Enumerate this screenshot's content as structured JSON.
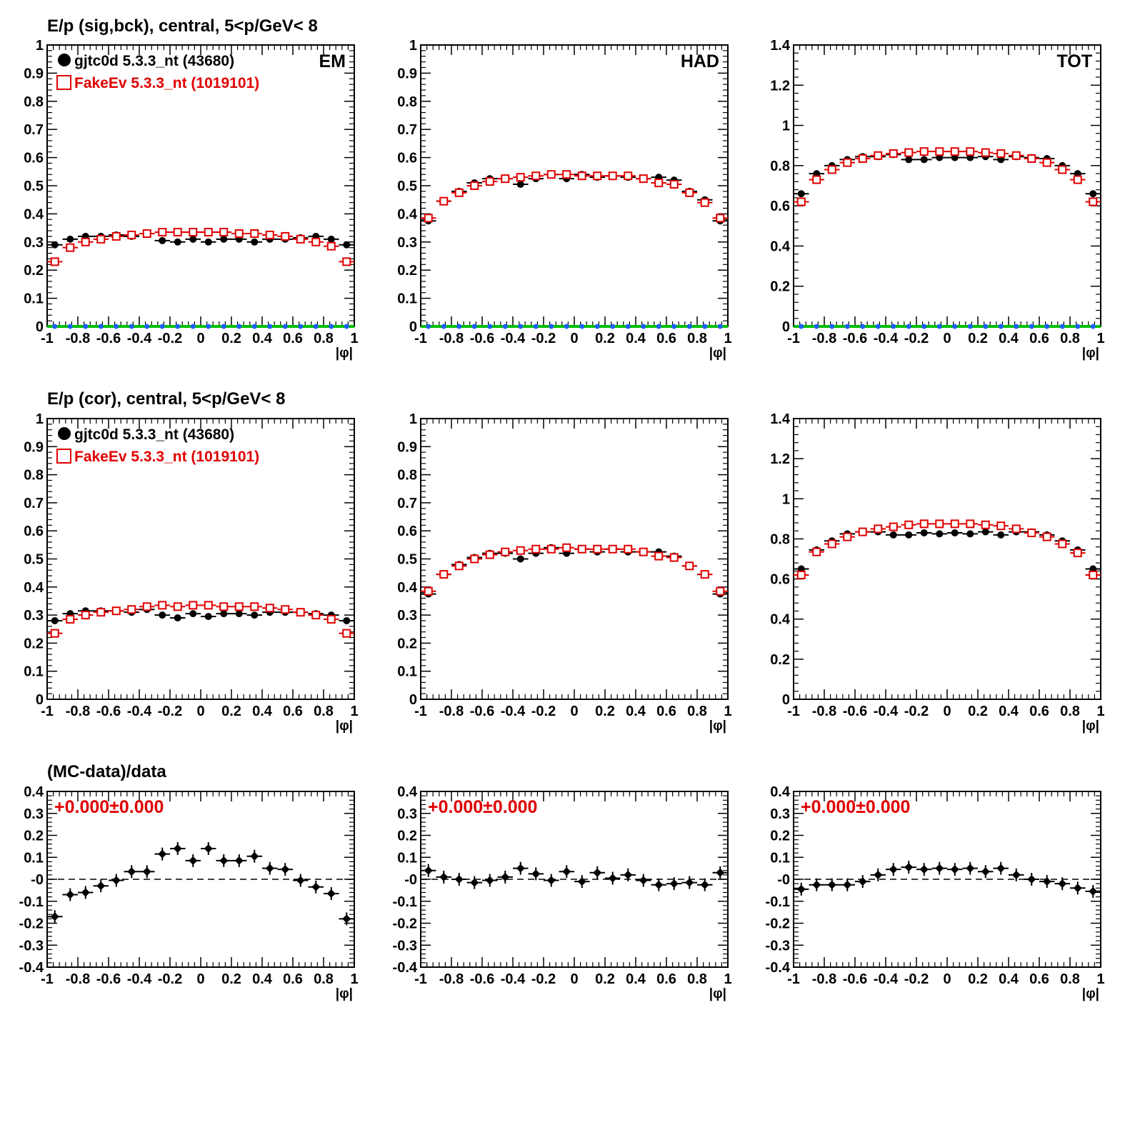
{
  "row_titles": [
    "E/p (sig,bck), central,  5<p/GeV< 8",
    "E/p (cor), central,  5<p/GeV< 8",
    "(MC-data)/data"
  ],
  "panel_labels": [
    "EM",
    "HAD",
    "TOT"
  ],
  "xlabel": "|φ|",
  "legend": {
    "data_label": "gjtc0d 5.3.3_nt (43680)",
    "mc_label": "FakeEv 5.3.3_nt (1019101)"
  },
  "ratio_annotation": "+0.000±0.000",
  "colors": {
    "data": "#000000",
    "mc": "#e00000",
    "zero_band": "#00c000",
    "zero_marker": "#2060ff",
    "annotation": "#e00000"
  },
  "chart_data": [
    {
      "id": "r0c0",
      "type": "scatter",
      "title": "E/p (sig,bck), central,  5<p/GeV< 8",
      "label": "EM",
      "xlabel": "|φ|",
      "xlim": [
        -1,
        1
      ],
      "ylim": [
        0,
        1
      ],
      "yticks": [
        0,
        0.1,
        0.2,
        0.3,
        0.4,
        0.5,
        0.6,
        0.7,
        0.8,
        0.9,
        1
      ],
      "xticks": [
        -1,
        -0.8,
        -0.6,
        -0.4,
        -0.2,
        0,
        0.2,
        0.4,
        0.6,
        0.8,
        1
      ],
      "x": [
        -0.95,
        -0.85,
        -0.75,
        -0.65,
        -0.55,
        -0.45,
        -0.35,
        -0.25,
        -0.15,
        -0.05,
        0.05,
        0.15,
        0.25,
        0.35,
        0.45,
        0.55,
        0.65,
        0.75,
        0.85,
        0.95
      ],
      "series": [
        {
          "name": "gjtc0d 5.3.3_nt (43680)",
          "marker": "filled-circle",
          "values": [
            0.29,
            0.31,
            0.32,
            0.32,
            0.325,
            0.32,
            0.33,
            0.305,
            0.3,
            0.31,
            0.3,
            0.31,
            0.31,
            0.3,
            0.31,
            0.31,
            0.315,
            0.32,
            0.31,
            0.29
          ]
        },
        {
          "name": "FakeEv 5.3.3_nt (1019101)",
          "marker": "open-square",
          "values": [
            0.23,
            0.28,
            0.3,
            0.31,
            0.32,
            0.325,
            0.33,
            0.335,
            0.335,
            0.335,
            0.335,
            0.335,
            0.33,
            0.33,
            0.325,
            0.32,
            0.31,
            0.3,
            0.285,
            0.23
          ]
        },
        {
          "name": "",
          "marker": "zero-band",
          "values": [
            0,
            0,
            0,
            0,
            0,
            0,
            0,
            0,
            0,
            0,
            0,
            0,
            0,
            0,
            0,
            0,
            0,
            0,
            0,
            0
          ]
        }
      ]
    },
    {
      "id": "r0c1",
      "type": "scatter",
      "label": "HAD",
      "xlabel": "|φ|",
      "xlim": [
        -1,
        1
      ],
      "ylim": [
        0,
        1
      ],
      "yticks": [
        0,
        0.1,
        0.2,
        0.3,
        0.4,
        0.5,
        0.6,
        0.7,
        0.8,
        0.9,
        1
      ],
      "xticks": [
        -1,
        -0.8,
        -0.6,
        -0.4,
        -0.2,
        0,
        0.2,
        0.4,
        0.6,
        0.8,
        1
      ],
      "x": [
        -0.95,
        -0.85,
        -0.75,
        -0.65,
        -0.55,
        -0.45,
        -0.35,
        -0.25,
        -0.15,
        -0.05,
        0.05,
        0.15,
        0.25,
        0.35,
        0.45,
        0.55,
        0.65,
        0.75,
        0.85,
        0.95
      ],
      "series": [
        {
          "name": "gjtc0d 5.3.3_nt (43680)",
          "marker": "filled-circle",
          "values": [
            0.375,
            0.445,
            0.48,
            0.51,
            0.525,
            0.525,
            0.505,
            0.525,
            0.54,
            0.525,
            0.54,
            0.53,
            0.535,
            0.53,
            0.525,
            0.53,
            0.52,
            0.48,
            0.45,
            0.375
          ]
        },
        {
          "name": "FakeEv 5.3.3_nt (1019101)",
          "marker": "open-square",
          "values": [
            0.385,
            0.445,
            0.475,
            0.5,
            0.515,
            0.525,
            0.53,
            0.535,
            0.54,
            0.54,
            0.535,
            0.535,
            0.535,
            0.535,
            0.525,
            0.51,
            0.505,
            0.475,
            0.44,
            0.385
          ]
        },
        {
          "name": "",
          "marker": "zero-band",
          "values": [
            0,
            0,
            0,
            0,
            0,
            0,
            0,
            0,
            0,
            0,
            0,
            0,
            0,
            0,
            0,
            0,
            0,
            0,
            0,
            0
          ]
        }
      ]
    },
    {
      "id": "r0c2",
      "type": "scatter",
      "label": "TOT",
      "xlabel": "|φ|",
      "xlim": [
        -1,
        1
      ],
      "ylim": [
        0,
        1.4
      ],
      "yticks": [
        0,
        0.2,
        0.4,
        0.6,
        0.8,
        1,
        1.2,
        1.4
      ],
      "xticks": [
        -1,
        -0.8,
        -0.6,
        -0.4,
        -0.2,
        0,
        0.2,
        0.4,
        0.6,
        0.8,
        1
      ],
      "x": [
        -0.95,
        -0.85,
        -0.75,
        -0.65,
        -0.55,
        -0.45,
        -0.35,
        -0.25,
        -0.15,
        -0.05,
        0.05,
        0.15,
        0.25,
        0.35,
        0.45,
        0.55,
        0.65,
        0.75,
        0.85,
        0.95
      ],
      "series": [
        {
          "name": "gjtc0d 5.3.3_nt (43680)",
          "marker": "filled-circle",
          "values": [
            0.66,
            0.76,
            0.8,
            0.83,
            0.845,
            0.845,
            0.855,
            0.83,
            0.83,
            0.84,
            0.84,
            0.84,
            0.845,
            0.83,
            0.845,
            0.84,
            0.835,
            0.8,
            0.76,
            0.66
          ]
        },
        {
          "name": "FakeEv 5.3.3_nt (1019101)",
          "marker": "open-square",
          "values": [
            0.62,
            0.73,
            0.78,
            0.815,
            0.835,
            0.85,
            0.86,
            0.865,
            0.87,
            0.87,
            0.87,
            0.87,
            0.865,
            0.86,
            0.85,
            0.835,
            0.815,
            0.78,
            0.73,
            0.62
          ]
        },
        {
          "name": "",
          "marker": "zero-band",
          "values": [
            0,
            0,
            0,
            0,
            0,
            0,
            0,
            0,
            0,
            0,
            0,
            0,
            0,
            0,
            0,
            0,
            0,
            0,
            0,
            0
          ]
        }
      ]
    },
    {
      "id": "r1c0",
      "type": "scatter",
      "title": "E/p (cor), central,  5<p/GeV< 8",
      "xlabel": "|φ|",
      "xlim": [
        -1,
        1
      ],
      "ylim": [
        0,
        1
      ],
      "yticks": [
        0,
        0.1,
        0.2,
        0.3,
        0.4,
        0.5,
        0.6,
        0.7,
        0.8,
        0.9,
        1
      ],
      "xticks": [
        -1,
        -0.8,
        -0.6,
        -0.4,
        -0.2,
        0,
        0.2,
        0.4,
        0.6,
        0.8,
        1
      ],
      "x": [
        -0.95,
        -0.85,
        -0.75,
        -0.65,
        -0.55,
        -0.45,
        -0.35,
        -0.25,
        -0.15,
        -0.05,
        0.05,
        0.15,
        0.25,
        0.35,
        0.45,
        0.55,
        0.65,
        0.75,
        0.85,
        0.95
      ],
      "series": [
        {
          "name": "gjtc0d 5.3.3_nt (43680)",
          "marker": "filled-circle",
          "values": [
            0.28,
            0.305,
            0.315,
            0.315,
            0.315,
            0.31,
            0.32,
            0.3,
            0.29,
            0.305,
            0.295,
            0.305,
            0.305,
            0.3,
            0.31,
            0.31,
            0.31,
            0.305,
            0.3,
            0.28
          ]
        },
        {
          "name": "FakeEv 5.3.3_nt (1019101)",
          "marker": "open-square",
          "values": [
            0.235,
            0.285,
            0.3,
            0.31,
            0.315,
            0.32,
            0.33,
            0.335,
            0.33,
            0.335,
            0.335,
            0.33,
            0.33,
            0.33,
            0.325,
            0.32,
            0.31,
            0.3,
            0.285,
            0.235
          ]
        }
      ]
    },
    {
      "id": "r1c1",
      "type": "scatter",
      "xlabel": "|φ|",
      "xlim": [
        -1,
        1
      ],
      "ylim": [
        0,
        1
      ],
      "yticks": [
        0,
        0.1,
        0.2,
        0.3,
        0.4,
        0.5,
        0.6,
        0.7,
        0.8,
        0.9,
        1
      ],
      "xticks": [
        -1,
        -0.8,
        -0.6,
        -0.4,
        -0.2,
        0,
        0.2,
        0.4,
        0.6,
        0.8,
        1
      ],
      "x": [
        -0.95,
        -0.85,
        -0.75,
        -0.65,
        -0.55,
        -0.45,
        -0.35,
        -0.25,
        -0.15,
        -0.05,
        0.05,
        0.15,
        0.25,
        0.35,
        0.45,
        0.55,
        0.65,
        0.75,
        0.85,
        0.95
      ],
      "series": [
        {
          "name": "gjtc0d 5.3.3_nt (43680)",
          "marker": "filled-circle",
          "values": [
            0.375,
            0.445,
            0.48,
            0.505,
            0.52,
            0.52,
            0.5,
            0.52,
            0.54,
            0.52,
            0.535,
            0.525,
            0.535,
            0.525,
            0.525,
            0.525,
            0.51,
            0.475,
            0.445,
            0.375
          ]
        },
        {
          "name": "FakeEv 5.3.3_nt (1019101)",
          "marker": "open-square",
          "values": [
            0.385,
            0.445,
            0.475,
            0.5,
            0.515,
            0.525,
            0.53,
            0.535,
            0.535,
            0.54,
            0.535,
            0.535,
            0.535,
            0.535,
            0.525,
            0.51,
            0.505,
            0.475,
            0.445,
            0.385
          ]
        }
      ]
    },
    {
      "id": "r1c2",
      "type": "scatter",
      "xlabel": "|φ|",
      "xlim": [
        -1,
        1
      ],
      "ylim": [
        0,
        1.4
      ],
      "yticks": [
        0,
        0.2,
        0.4,
        0.6,
        0.8,
        1,
        1.2,
        1.4
      ],
      "xticks": [
        -1,
        -0.8,
        -0.6,
        -0.4,
        -0.2,
        0,
        0.2,
        0.4,
        0.6,
        0.8,
        1
      ],
      "x": [
        -0.95,
        -0.85,
        -0.75,
        -0.65,
        -0.55,
        -0.45,
        -0.35,
        -0.25,
        -0.15,
        -0.05,
        0.05,
        0.15,
        0.25,
        0.35,
        0.45,
        0.55,
        0.65,
        0.75,
        0.85,
        0.95
      ],
      "series": [
        {
          "name": "gjtc0d 5.3.3_nt (43680)",
          "marker": "filled-circle",
          "values": [
            0.65,
            0.745,
            0.79,
            0.825,
            0.835,
            0.835,
            0.82,
            0.82,
            0.83,
            0.825,
            0.83,
            0.825,
            0.835,
            0.82,
            0.835,
            0.835,
            0.82,
            0.79,
            0.745,
            0.65
          ]
        },
        {
          "name": "FakeEv 5.3.3_nt (1019101)",
          "marker": "open-square",
          "values": [
            0.62,
            0.735,
            0.775,
            0.81,
            0.835,
            0.85,
            0.86,
            0.87,
            0.875,
            0.875,
            0.875,
            0.875,
            0.87,
            0.865,
            0.85,
            0.83,
            0.81,
            0.775,
            0.73,
            0.62
          ]
        }
      ]
    },
    {
      "id": "r2c0",
      "type": "scatter",
      "title": "(MC-data)/data",
      "xlabel": "|φ|",
      "xlim": [
        -1,
        1
      ],
      "ylim": [
        -0.4,
        0.4
      ],
      "yticks": [
        -0.4,
        -0.3,
        -0.2,
        -0.1,
        0,
        0.1,
        0.2,
        0.3,
        0.4
      ],
      "xticks": [
        -1,
        -0.8,
        -0.6,
        -0.4,
        -0.2,
        0,
        0.2,
        0.4,
        0.6,
        0.8,
        1
      ],
      "x": [
        -0.95,
        -0.85,
        -0.75,
        -0.65,
        -0.55,
        -0.45,
        -0.35,
        -0.25,
        -0.15,
        -0.05,
        0.05,
        0.15,
        0.25,
        0.35,
        0.45,
        0.55,
        0.65,
        0.75,
        0.85,
        0.95
      ],
      "annotation": "+0.000±0.000",
      "series": [
        {
          "name": "",
          "marker": "filled-diamond",
          "values": [
            -0.17,
            -0.07,
            -0.06,
            -0.03,
            -0.005,
            0.035,
            0.035,
            0.115,
            0.14,
            0.085,
            0.14,
            0.085,
            0.085,
            0.105,
            0.05,
            0.045,
            -0.005,
            -0.035,
            -0.065,
            -0.18
          ]
        }
      ]
    },
    {
      "id": "r2c1",
      "type": "scatter",
      "xlabel": "|φ|",
      "xlim": [
        -1,
        1
      ],
      "ylim": [
        -0.4,
        0.4
      ],
      "yticks": [
        -0.4,
        -0.3,
        -0.2,
        -0.1,
        0,
        0.1,
        0.2,
        0.3,
        0.4
      ],
      "xticks": [
        -1,
        -0.8,
        -0.6,
        -0.4,
        -0.2,
        0,
        0.2,
        0.4,
        0.6,
        0.8,
        1
      ],
      "x": [
        -0.95,
        -0.85,
        -0.75,
        -0.65,
        -0.55,
        -0.45,
        -0.35,
        -0.25,
        -0.15,
        -0.05,
        0.05,
        0.15,
        0.25,
        0.35,
        0.45,
        0.55,
        0.65,
        0.75,
        0.85,
        0.95
      ],
      "annotation": "+0.000±0.000",
      "series": [
        {
          "name": "",
          "marker": "filled-diamond",
          "values": [
            0.04,
            0.01,
            0.0,
            -0.015,
            -0.005,
            0.01,
            0.05,
            0.025,
            -0.005,
            0.035,
            -0.01,
            0.03,
            0.005,
            0.02,
            -0.005,
            -0.025,
            -0.02,
            -0.015,
            -0.025,
            0.03
          ]
        }
      ]
    },
    {
      "id": "r2c2",
      "type": "scatter",
      "xlabel": "|φ|",
      "xlim": [
        -1,
        1
      ],
      "ylim": [
        -0.4,
        0.4
      ],
      "yticks": [
        -0.4,
        -0.3,
        -0.2,
        -0.1,
        0,
        0.1,
        0.2,
        0.3,
        0.4
      ],
      "xticks": [
        -1,
        -0.8,
        -0.6,
        -0.4,
        -0.2,
        0,
        0.2,
        0.4,
        0.6,
        0.8,
        1
      ],
      "x": [
        -0.95,
        -0.85,
        -0.75,
        -0.65,
        -0.55,
        -0.45,
        -0.35,
        -0.25,
        -0.15,
        -0.05,
        0.05,
        0.15,
        0.25,
        0.35,
        0.45,
        0.55,
        0.65,
        0.75,
        0.85,
        0.95
      ],
      "annotation": "+0.000±0.000",
      "series": [
        {
          "name": "",
          "marker": "filled-diamond",
          "values": [
            -0.045,
            -0.025,
            -0.025,
            -0.025,
            -0.01,
            0.02,
            0.045,
            0.055,
            0.045,
            0.05,
            0.045,
            0.05,
            0.035,
            0.05,
            0.02,
            0.0,
            -0.01,
            -0.02,
            -0.04,
            -0.055
          ]
        }
      ]
    }
  ]
}
